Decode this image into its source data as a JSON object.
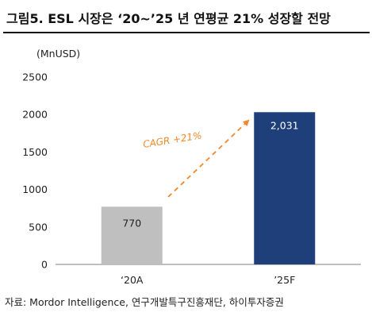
{
  "figure": {
    "title": "그림5. ESL 시장은 ‘20~’25 년 연평균 21% 성장할 전망",
    "source": "자료: Mordor Intelligence, 연구개발특구진흥재단, 하이투자증권"
  },
  "colors": {
    "bar_actual": "#bfbfbf",
    "bar_forecast": "#1f3f7a",
    "cagr_arrow": "#f0872a",
    "axis": "#7f7f7f"
  },
  "chart_data": {
    "type": "bar",
    "categories": [
      "‘20A",
      "’25F"
    ],
    "values": [
      770,
      2031
    ],
    "data_labels": [
      "770",
      "2,031"
    ],
    "ylabel": "(MnUSD)",
    "ylim": [
      0,
      2500
    ],
    "yticks": [
      0,
      500,
      1000,
      1500,
      2000,
      2500
    ],
    "ytick_labels": [
      "0",
      "500",
      "1000",
      "1500",
      "2000",
      "2500"
    ],
    "grid": false,
    "annotation": "CAGR +21%"
  }
}
